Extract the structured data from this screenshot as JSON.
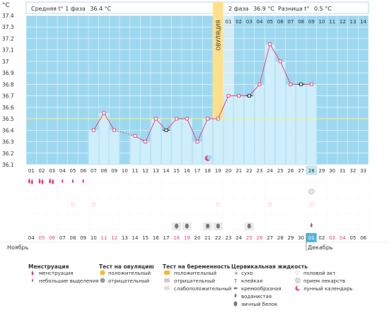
{
  "header": {
    "unit": "°C",
    "phase1_label": "Средняя t° 1 фаза",
    "phase1_value": "36.4 °C",
    "phase2_label": "2 фаза",
    "phase2_value": "36.9 °C",
    "diff_label": "Разница t°",
    "diff_value": "0.5 °C"
  },
  "ovulation_label": "ОВУЛЯЦИЯ",
  "phase2_day_labels": [
    "01",
    "02",
    "03",
    "04",
    "05",
    "06",
    "07",
    "08",
    "09",
    "10",
    "11",
    "12",
    "13",
    "14"
  ],
  "chart_data": {
    "type": "line",
    "ylabel": "°C",
    "ylim": [
      36.1,
      37.4
    ],
    "yticks": [
      36.1,
      36.2,
      36.3,
      36.4,
      36.5,
      36.6,
      36.7,
      36.8,
      36.9,
      37.0,
      37.1,
      37.2,
      37.3,
      37.4
    ],
    "ytick_labels": [
      "36.1",
      "36.2",
      "36.3",
      "36.4",
      "36.5",
      "36.6",
      "36.7",
      "36.8",
      "36.9",
      "37",
      "37.1",
      "37.2",
      "37.3",
      "37.4"
    ],
    "cycle_days": [
      "01",
      "02",
      "03",
      "04",
      "05",
      "06",
      "07",
      "08",
      "09",
      "10",
      "11",
      "12",
      "13",
      "14",
      "15",
      "16",
      "17",
      "18",
      "19",
      "20",
      "21",
      "22",
      "23",
      "24",
      "25",
      "26",
      "27",
      "28",
      "29",
      "30",
      "31",
      "32",
      "33"
    ],
    "current_day": "28",
    "ovulation_day": 19,
    "baseline": 36.5,
    "series": [
      {
        "points": [
          {
            "day": 7,
            "temp": 36.4
          },
          {
            "day": 8,
            "temp": 36.55
          },
          {
            "day": 9,
            "temp": 36.4
          },
          {
            "day": 11,
            "temp": 36.35
          },
          {
            "day": 12,
            "temp": 36.3
          },
          {
            "day": 13,
            "temp": 36.5
          },
          {
            "day": 14,
            "temp": 36.4
          },
          {
            "day": 15,
            "temp": 36.5
          },
          {
            "day": 16,
            "temp": 36.5
          },
          {
            "day": 17,
            "temp": 36.3
          },
          {
            "day": 18,
            "temp": 36.5
          },
          {
            "day": 19,
            "temp": 36.5
          },
          {
            "day": 20,
            "temp": 36.7
          },
          {
            "day": 21,
            "temp": 36.7
          },
          {
            "day": 22,
            "temp": 36.7
          },
          {
            "day": 23,
            "temp": 36.8
          },
          {
            "day": 24,
            "temp": 37.15
          },
          {
            "day": 25,
            "temp": 37.0
          },
          {
            "day": 26,
            "temp": 36.8
          },
          {
            "day": 27,
            "temp": 36.8
          },
          {
            "day": 28,
            "temp": 36.8
          }
        ],
        "dashed_segment_days": [
          9,
          11
        ],
        "black_marker_days": [
          14,
          22,
          27
        ]
      }
    ]
  },
  "rows": {
    "menstruation": {
      "heavy_days": [
        1,
        2,
        3
      ],
      "light_days": [
        4,
        5,
        6
      ]
    },
    "hearts_days": [
      5,
      7,
      19,
      24,
      28
    ],
    "drug_days": [
      28
    ],
    "mucus_days": [
      15,
      16,
      18,
      19,
      22
    ],
    "lunar_day": 18,
    "mucus_dark_day": 28
  },
  "dates": {
    "values": [
      "04",
      "05",
      "06",
      "07",
      "08",
      "09",
      "10",
      "11",
      "12",
      "13",
      "14",
      "15",
      "16",
      "17",
      "18",
      "19",
      "20",
      "21",
      "22",
      "23",
      "24",
      "25",
      "26",
      "27",
      "28",
      "29",
      "30",
      "01",
      "02",
      "03",
      "04",
      "05",
      "06"
    ],
    "red_indices": [
      1,
      2,
      7,
      8,
      14,
      15,
      21,
      22,
      29,
      30
    ],
    "highlight_index": 27,
    "month_start": "Ноябрь",
    "month_end": "Декабрь"
  },
  "legend": {
    "menstruation": {
      "title": "Менструация",
      "items": [
        "менструация",
        "небольшие выделения"
      ]
    },
    "ovulation_test": {
      "title": "Тест на овуляцию",
      "items": [
        "положительный",
        "отрицательный"
      ]
    },
    "pregnancy_test": {
      "title": "Тест на беременность",
      "items": [
        "положительный",
        "отрицательный",
        "слабоположительный"
      ]
    },
    "cervical": {
      "title": "Цервикальная жидкость",
      "items": [
        "сухо",
        "клейкая",
        "кремообразная",
        "водянистая",
        "яичный белок"
      ]
    },
    "other": {
      "items": [
        "половой акт",
        "прием лекарств",
        "лунный календарь"
      ]
    }
  },
  "colors": {
    "sky": "#9ed8f0",
    "bar": "#cfeefb",
    "line": "#e8447a",
    "ovulation": "#ffe08a",
    "baseline": "#f2f27a",
    "today": "#4fb3e0"
  }
}
